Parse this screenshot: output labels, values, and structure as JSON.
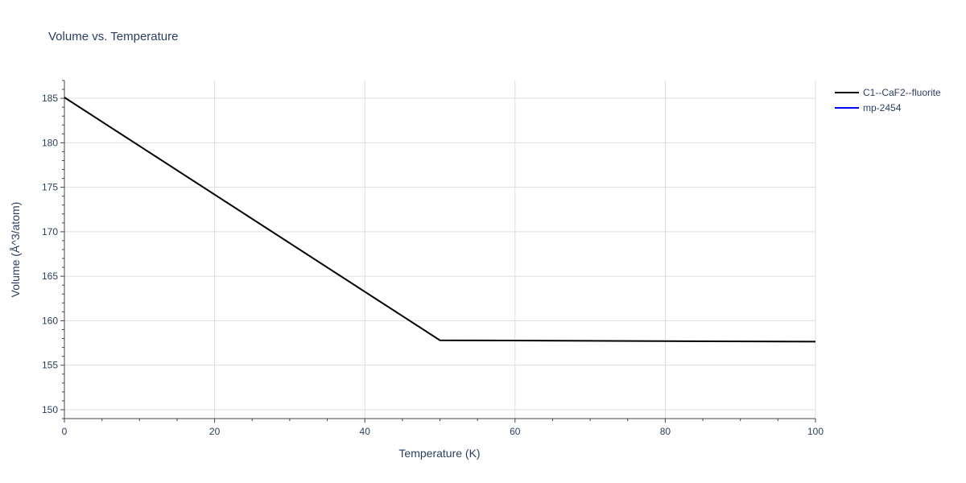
{
  "chart_data": {
    "type": "line",
    "title": "Volume vs. Temperature",
    "xlabel": "Temperature (K)",
    "ylabel": "Volume (Å^3/atom)",
    "xlim": [
      0,
      100
    ],
    "ylim": [
      149,
      187
    ],
    "x_ticks": [
      0,
      20,
      40,
      60,
      80,
      100
    ],
    "y_ticks": [
      150,
      155,
      160,
      165,
      170,
      175,
      180,
      185
    ],
    "grid": true,
    "legend_position": "top-right",
    "series": [
      {
        "name": "C1--CaF2--fluorite",
        "color": "#000000",
        "x": [
          0,
          50,
          100
        ],
        "y": [
          185.1,
          157.8,
          157.65
        ]
      },
      {
        "name": "mp-2454",
        "color": "#0000ff",
        "x": [],
        "y": []
      }
    ]
  }
}
